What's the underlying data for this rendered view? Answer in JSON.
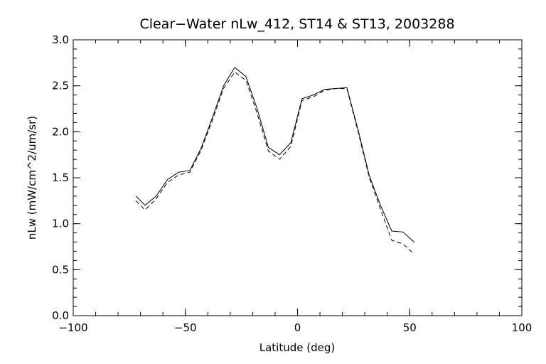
{
  "chart_data": {
    "type": "line",
    "title": "Clear−Water nLw_412, ST14 & ST13, 2003288",
    "xlabel": "Latitude (deg)",
    "ylabel": "nLw (mW/cm^2/um/sr)",
    "xlim": [
      -100,
      100
    ],
    "ylim": [
      0.0,
      3.0
    ],
    "x_ticks": [
      -100,
      -50,
      0,
      50,
      100
    ],
    "x_tick_labels": [
      "−100",
      "−50",
      "0",
      "50",
      "100"
    ],
    "y_ticks": [
      0.0,
      0.5,
      1.0,
      1.5,
      2.0,
      2.5,
      3.0
    ],
    "y_tick_labels": [
      "0.0",
      "0.5",
      "1.0",
      "1.5",
      "2.0",
      "2.5",
      "3.0"
    ],
    "grid": false,
    "series": [
      {
        "style": "solid",
        "color": "#000000",
        "x": [
          -72,
          -68,
          -63,
          -58,
          -53,
          -48,
          -43,
          -38,
          -33,
          -28,
          -23,
          -18,
          -13,
          -8,
          -3,
          2,
          7,
          12,
          17,
          22,
          27,
          32,
          37,
          42,
          47,
          52
        ],
        "y": [
          1.3,
          1.2,
          1.3,
          1.48,
          1.56,
          1.58,
          1.82,
          2.15,
          2.5,
          2.7,
          2.6,
          2.25,
          1.83,
          1.75,
          1.88,
          2.36,
          2.4,
          2.46,
          2.47,
          2.48,
          2.02,
          1.52,
          1.2,
          0.92,
          0.91,
          0.8
        ]
      },
      {
        "style": "dashed",
        "color": "#000000",
        "x": [
          -72,
          -68,
          -63,
          -58,
          -53,
          -48,
          -43,
          -38,
          -33,
          -28,
          -23,
          -18,
          -13,
          -8,
          -3,
          2,
          7,
          12,
          17,
          22,
          27,
          32,
          37,
          42,
          47,
          52
        ],
        "y": [
          1.25,
          1.15,
          1.27,
          1.45,
          1.53,
          1.56,
          1.8,
          2.12,
          2.47,
          2.65,
          2.56,
          2.2,
          1.79,
          1.7,
          1.84,
          2.34,
          2.38,
          2.45,
          2.47,
          2.47,
          2.0,
          1.5,
          1.16,
          0.82,
          0.78,
          0.67
        ]
      }
    ]
  }
}
